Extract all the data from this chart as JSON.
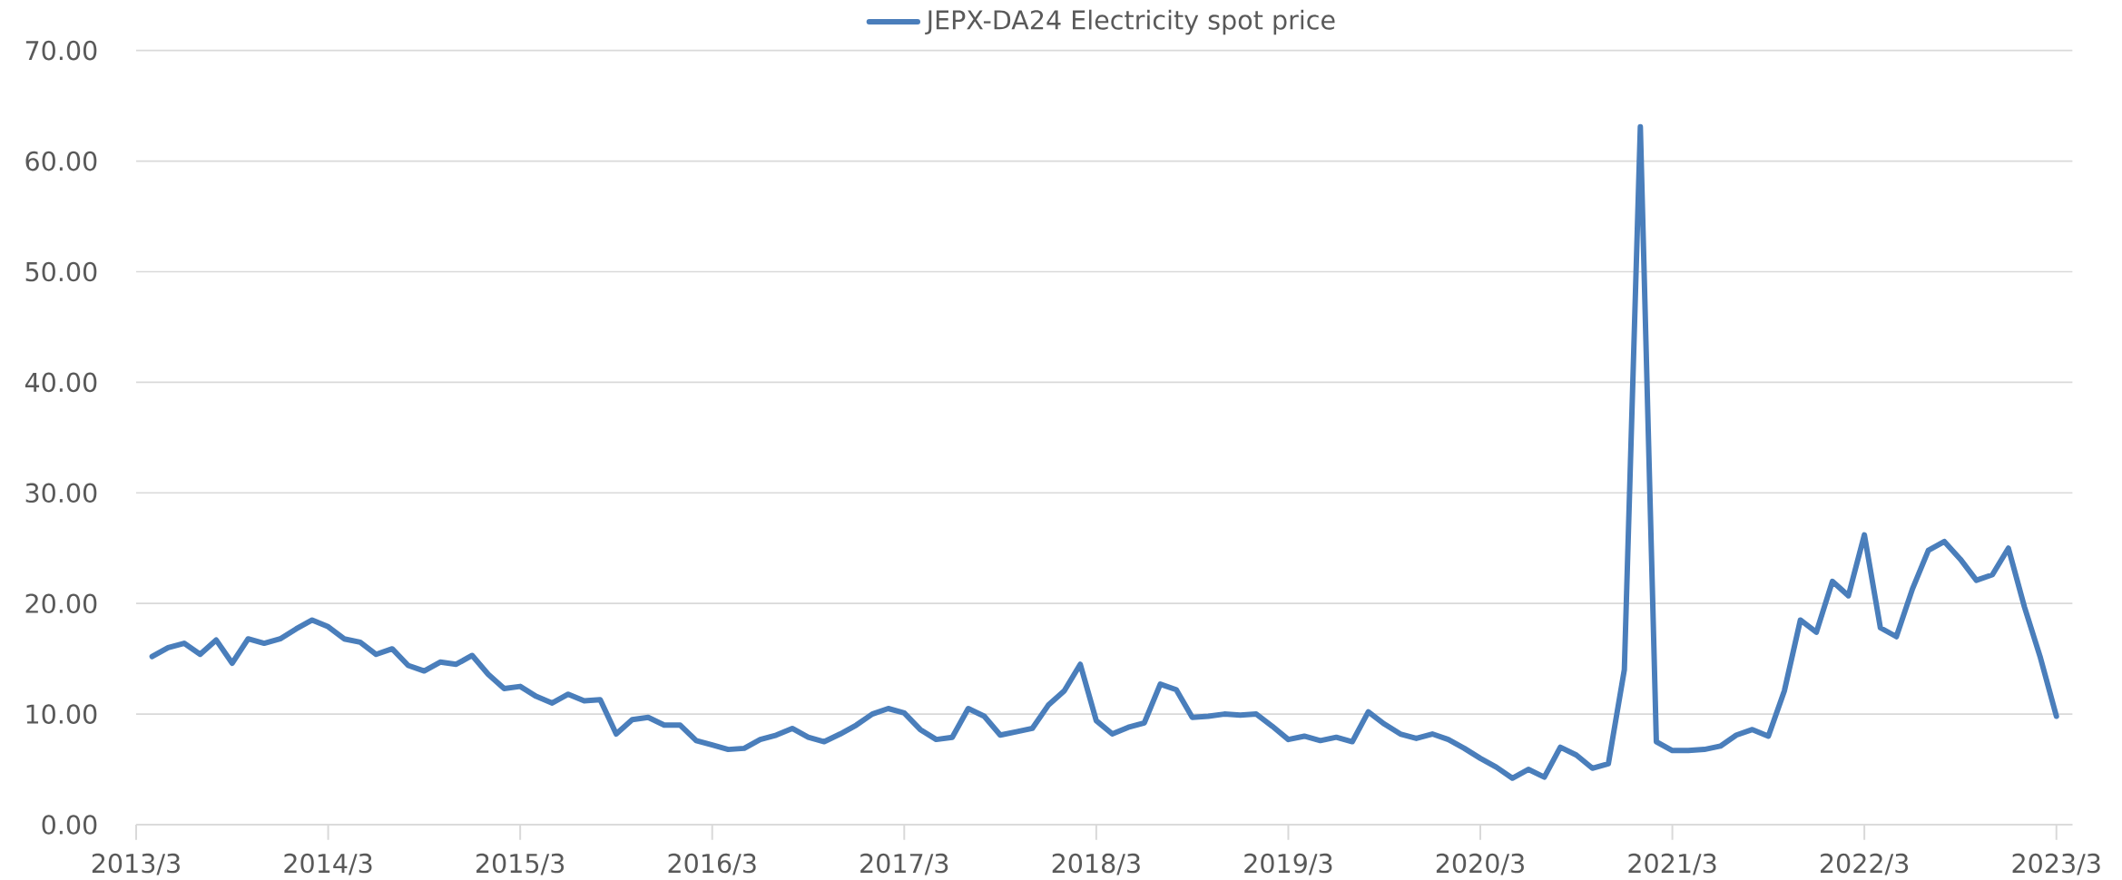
{
  "chart_data": {
    "type": "line",
    "x": [
      "2013-04",
      "2013-05",
      "2013-06",
      "2013-07",
      "2013-08",
      "2013-09",
      "2013-10",
      "2013-11",
      "2013-12",
      "2014-01",
      "2014-02",
      "2014-03",
      "2014-04",
      "2014-05",
      "2014-06",
      "2014-07",
      "2014-08",
      "2014-09",
      "2014-10",
      "2014-11",
      "2014-12",
      "2015-01",
      "2015-02",
      "2015-03",
      "2015-04",
      "2015-05",
      "2015-06",
      "2015-07",
      "2015-08",
      "2015-09",
      "2015-10",
      "2015-11",
      "2015-12",
      "2016-01",
      "2016-02",
      "2016-03",
      "2016-04",
      "2016-05",
      "2016-06",
      "2016-07",
      "2016-08",
      "2016-09",
      "2016-10",
      "2016-11",
      "2016-12",
      "2017-01",
      "2017-02",
      "2017-03",
      "2017-04",
      "2017-05",
      "2017-06",
      "2017-07",
      "2017-08",
      "2017-09",
      "2017-10",
      "2017-11",
      "2017-12",
      "2018-01",
      "2018-02",
      "2018-03",
      "2018-04",
      "2018-05",
      "2018-06",
      "2018-07",
      "2018-08",
      "2018-09",
      "2018-10",
      "2018-11",
      "2018-12",
      "2019-01",
      "2019-02",
      "2019-03",
      "2019-04",
      "2019-05",
      "2019-06",
      "2019-07",
      "2019-08",
      "2019-09",
      "2019-10",
      "2019-11",
      "2019-12",
      "2020-01",
      "2020-02",
      "2020-03",
      "2020-04",
      "2020-05",
      "2020-06",
      "2020-07",
      "2020-08",
      "2020-09",
      "2020-10",
      "2020-11",
      "2020-12",
      "2021-01",
      "2021-02",
      "2021-03",
      "2021-04",
      "2021-05",
      "2021-06",
      "2021-07",
      "2021-08",
      "2021-09",
      "2021-10",
      "2021-11",
      "2021-12",
      "2022-01",
      "2022-02",
      "2022-03",
      "2022-04",
      "2022-05",
      "2022-06",
      "2022-07",
      "2022-08",
      "2022-09",
      "2022-10",
      "2022-11",
      "2022-12",
      "2023-01",
      "2023-02",
      "2023-03"
    ],
    "series": [
      {
        "name": "JEPX-DA24 Electricity spot price",
        "color": "#4a7ebb",
        "values": [
          15.2,
          16.0,
          16.4,
          15.4,
          16.7,
          14.6,
          16.8,
          16.4,
          16.8,
          17.7,
          18.5,
          17.9,
          16.8,
          16.5,
          15.4,
          15.9,
          14.4,
          13.9,
          14.7,
          14.5,
          15.3,
          13.6,
          12.3,
          12.5,
          11.6,
          11.0,
          11.8,
          11.2,
          11.3,
          8.2,
          9.5,
          9.7,
          9.0,
          9.0,
          7.6,
          7.2,
          6.8,
          6.9,
          7.7,
          8.1,
          8.7,
          7.9,
          7.5,
          8.2,
          9.0,
          10.0,
          10.5,
          10.1,
          8.6,
          7.7,
          7.9,
          10.5,
          9.8,
          8.1,
          8.4,
          8.7,
          10.8,
          12.1,
          14.5,
          9.4,
          8.2,
          8.8,
          9.2,
          12.7,
          12.2,
          9.7,
          9.8,
          10.0,
          9.9,
          10.0,
          8.9,
          7.7,
          8.0,
          7.6,
          7.9,
          7.5,
          10.2,
          9.1,
          8.2,
          7.8,
          8.2,
          7.7,
          6.9,
          6.0,
          5.2,
          4.2,
          5.0,
          4.3,
          7.0,
          6.3,
          5.1,
          5.5,
          14.0,
          63.1,
          7.5,
          6.7,
          6.7,
          6.8,
          7.1,
          8.1,
          8.6,
          8.0,
          12.1,
          18.5,
          17.4,
          22.0,
          20.7,
          26.2,
          17.8,
          17.0,
          21.3,
          24.8,
          25.6,
          24.0,
          22.1,
          22.6,
          25.0,
          19.7,
          15.1,
          9.8
        ]
      }
    ],
    "xlim": [
      "2013-03",
      "2023-04"
    ],
    "xticks": [
      {
        "value": "2013-03",
        "label": "2013/3"
      },
      {
        "value": "2014-03",
        "label": "2014/3"
      },
      {
        "value": "2015-03",
        "label": "2015/3"
      },
      {
        "value": "2016-03",
        "label": "2016/3"
      },
      {
        "value": "2017-03",
        "label": "2017/3"
      },
      {
        "value": "2018-03",
        "label": "2018/3"
      },
      {
        "value": "2019-03",
        "label": "2019/3"
      },
      {
        "value": "2020-03",
        "label": "2020/3"
      },
      {
        "value": "2021-03",
        "label": "2021/3"
      },
      {
        "value": "2022-03",
        "label": "2022/3"
      },
      {
        "value": "2023-03",
        "label": "2023/3"
      }
    ],
    "ylim": [
      0,
      70
    ],
    "yticks": [
      {
        "value": 0,
        "label": "0.00"
      },
      {
        "value": 10,
        "label": "10.00"
      },
      {
        "value": 20,
        "label": "20.00"
      },
      {
        "value": 30,
        "label": "30.00"
      },
      {
        "value": 40,
        "label": "40.00"
      },
      {
        "value": 50,
        "label": "50.00"
      },
      {
        "value": 60,
        "label": "60.00"
      },
      {
        "value": 70,
        "label": "70.00"
      }
    ],
    "grid": "y",
    "legend": "top",
    "marker": "none",
    "line_style": "solid"
  }
}
